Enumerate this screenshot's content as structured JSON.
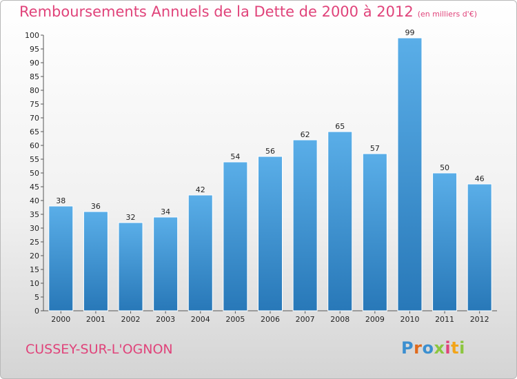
{
  "chart_data": {
    "type": "bar",
    "title": "Remboursements Annuels de la Dette de 2000 à 2012",
    "subtitle": "(en milliers d'€)",
    "categories": [
      "2000",
      "2001",
      "2002",
      "2003",
      "2004",
      "2005",
      "2006",
      "2007",
      "2008",
      "2009",
      "2010",
      "2011",
      "2012"
    ],
    "values": [
      38,
      36,
      32,
      34,
      42,
      54,
      56,
      62,
      65,
      57,
      99,
      50,
      46
    ],
    "xlabel": "",
    "ylabel": "",
    "ylim": [
      0,
      100
    ],
    "ytick_step": 5,
    "grid": false,
    "legend": "none",
    "bar_color_top": "#5aaee8",
    "bar_color_bottom": "#2878b8"
  },
  "footer": {
    "town": "CUSSEY-SUR-L'OGNON"
  },
  "logo": {
    "letters": [
      "P",
      "r",
      "o",
      "x",
      "i",
      "t",
      "i"
    ],
    "colors": [
      "#3b8fd0",
      "#e06a1c",
      "#3b8fd0",
      "#8cc63f",
      "#e0437a",
      "#f3a51a",
      "#8cc63f"
    ]
  }
}
